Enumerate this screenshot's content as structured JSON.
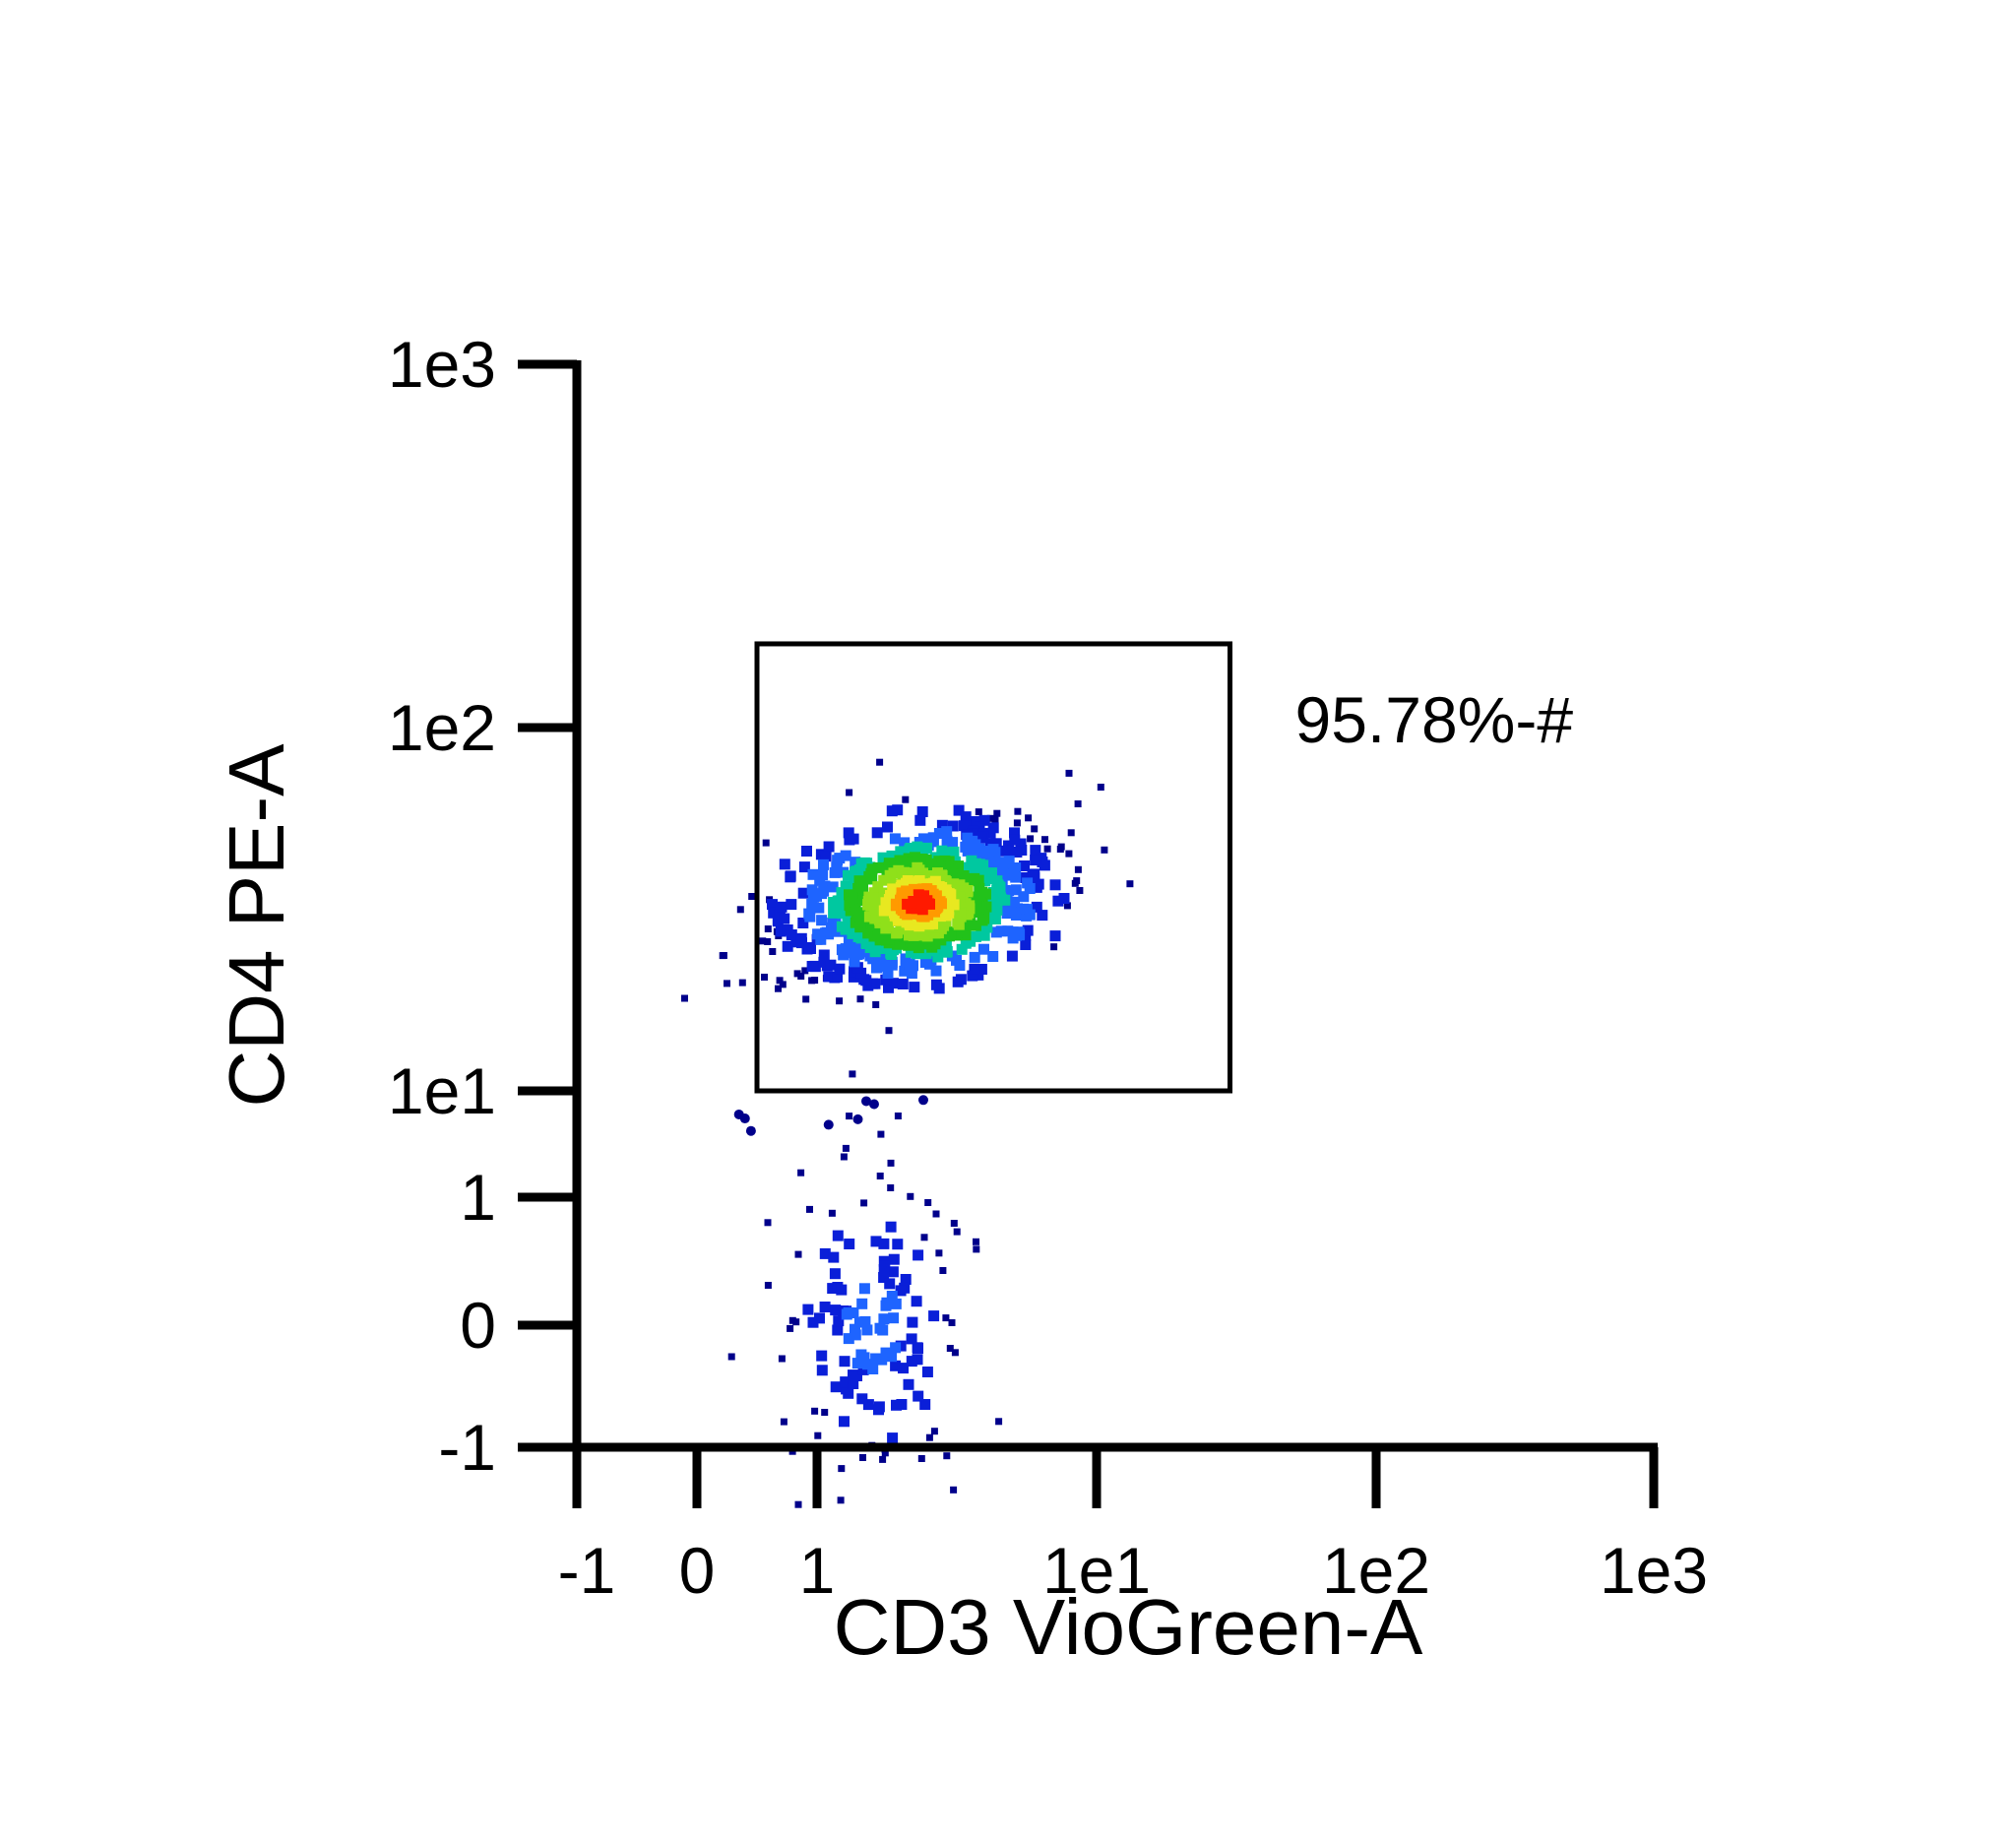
{
  "chart_data": {
    "type": "scatter",
    "style": "density-pseudocolor",
    "title": "",
    "xlabel": "CD3 VioGreen-A",
    "ylabel": "CD4 PE-A",
    "x_scale": "biexponential",
    "y_scale": "biexponential",
    "xlim": [
      -1,
      1000
    ],
    "ylim": [
      -1,
      1000
    ],
    "x_ticks": [
      {
        "value": -1,
        "label": "-1"
      },
      {
        "value": 0,
        "label": "0"
      },
      {
        "value": 1,
        "label": "1"
      },
      {
        "value": 10,
        "label": "1e1"
      },
      {
        "value": 100,
        "label": "1e2"
      },
      {
        "value": 1000,
        "label": "1e3"
      }
    ],
    "y_ticks": [
      {
        "value": -1,
        "label": "-1"
      },
      {
        "value": 0,
        "label": "0"
      },
      {
        "value": 1,
        "label": "1"
      },
      {
        "value": 10,
        "label": "1e1"
      },
      {
        "value": 100,
        "label": "1e2"
      },
      {
        "value": 1000,
        "label": "1e3"
      }
    ],
    "gate": {
      "x_range": [
        0.5,
        30
      ],
      "y_range": [
        10,
        170
      ],
      "label": "95.78%-#"
    },
    "populations": [
      {
        "center": [
          2.3,
          33
        ],
        "spread": [
          0.24,
          0.12
        ],
        "count": 900
      },
      {
        "center": [
          1.6,
          0.0
        ],
        "spread": [
          0.17,
          0.22
        ],
        "count": 150
      }
    ],
    "density_colors": [
      "#00008b",
      "#0a1fd8",
      "#1e64ff",
      "#00c8a0",
      "#22c21a",
      "#8fe01a",
      "#e8e820",
      "#ff9a00",
      "#ff1a00"
    ],
    "grid": false,
    "legend": "none"
  }
}
